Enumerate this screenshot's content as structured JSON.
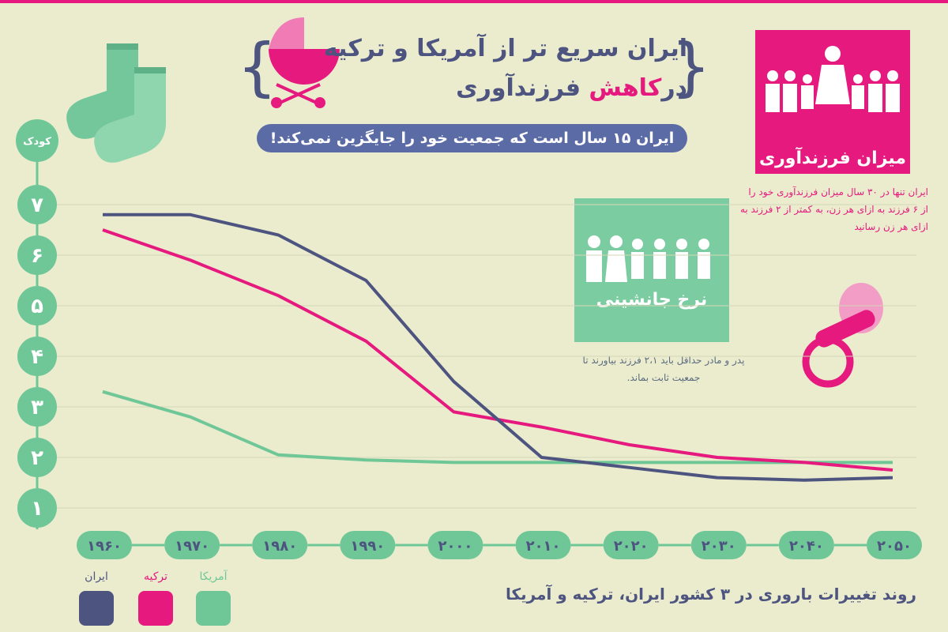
{
  "header": {
    "title_line1": "ایران سریع تر از آمریکا و ترکیه",
    "title_line2_pre": "در",
    "title_line2_highlight": "کاهش",
    "title_line2_post": " فرزندآوری",
    "subtitle": "ایران ۱۵ سال است که جمعیت خود را جایگزین نمی‌کند!"
  },
  "pink_panel": {
    "label": "میزان فرزندآوری",
    "text": "ایران تنها در ۳۰ سال میزان فرزندآوری خود را از ۶ فرزند به ازای هر زن، به کمتر از ۲ فرزند به ازای هر زن رسانید"
  },
  "green_panel": {
    "label": "نرخ جانشینی",
    "text": "پدر و مادر حداقل باید ۲،۱ فرزند بیاورند تا جمعیت ثابت بماند."
  },
  "footer": {
    "caption": "روند تغییرات باروری در ۳ کشور ایران، ترکیه و آمریکا"
  },
  "colors": {
    "iran": "#4d5480",
    "turkey": "#e6197e",
    "usa": "#6fc797",
    "background": "#eaeccd"
  },
  "chart_data": {
    "type": "line",
    "ylabel": "کودک",
    "y_ticks": [
      "۱",
      "۲",
      "۳",
      "۴",
      "۵",
      "۶",
      "۷"
    ],
    "ylim": [
      1,
      7
    ],
    "categories": [
      "۱۹۶۰",
      "۱۹۷۰",
      "۱۹۸۰",
      "۱۹۹۰",
      "۲۰۰۰",
      "۲۰۱۰",
      "۲۰۲۰",
      "۲۰۳۰",
      "۲۰۴۰",
      "۲۰۵۰"
    ],
    "x": [
      1960,
      1970,
      1980,
      1990,
      2000,
      2010,
      2020,
      2030,
      2040,
      2050
    ],
    "grid": true,
    "series": [
      {
        "name": "ایران",
        "color": "#4d5480",
        "values": [
          6.8,
          6.8,
          6.4,
          5.5,
          3.5,
          2.0,
          1.8,
          1.6,
          1.55,
          1.6
        ]
      },
      {
        "name": "ترکیه",
        "color": "#e6197e",
        "values": [
          6.5,
          5.9,
          5.2,
          4.3,
          2.9,
          2.6,
          2.25,
          2.0,
          1.9,
          1.75
        ]
      },
      {
        "name": "آمریکا",
        "color": "#6fc797",
        "values": [
          3.3,
          2.8,
          2.05,
          1.95,
          1.9,
          1.9,
          1.9,
          1.9,
          1.9,
          1.9
        ]
      }
    ]
  }
}
